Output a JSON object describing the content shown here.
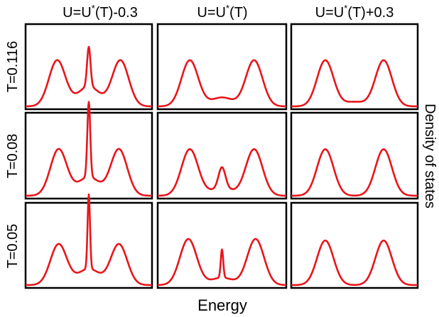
{
  "columns": [
    {
      "base": "U=U",
      "sup": "*",
      "rest": "(T)-0.3"
    },
    {
      "base": "U=U",
      "sup": "*",
      "rest": "(T)"
    },
    {
      "base": "U=U",
      "sup": "*",
      "rest": "(T)+0.3"
    }
  ],
  "rows": [
    "T=0.116",
    "T=0.08",
    "T=0.05"
  ],
  "xlabel": "Energy",
  "ylabel": "Density of states",
  "curve_color": "#e8151b",
  "chart_data": {
    "type": "line",
    "description_of_grid": "3x3 small multiples; rows = temperature T, columns = interaction U relative to U*(T)",
    "xlabel": "Energy",
    "ylabel": "Density of states",
    "x_ticks_shown": false,
    "y_ticks_shown": false,
    "panels": [
      {
        "row": "T=0.116",
        "col": "U=U*(T)-0.3",
        "hubbard_peaks_x": [
          -0.65,
          0.65
        ],
        "hubbard_peak_height": 0.62,
        "central_peak_height": 0.53,
        "central_peak_width": 0.035,
        "gap_depth": 0.27
      },
      {
        "row": "T=0.116",
        "col": "U=U*(T)",
        "hubbard_peaks_x": [
          -0.65,
          0.65
        ],
        "hubbard_peak_height": 0.62,
        "central_peak_height": 0.0,
        "central_peak_width": 0.0,
        "gap_depth": 0.12
      },
      {
        "row": "T=0.116",
        "col": "U=U*(T)+0.3",
        "hubbard_peaks_x": [
          -0.6,
          0.6
        ],
        "hubbard_peak_height": 0.62,
        "central_peak_height": 0.0,
        "central_peak_width": 0.0,
        "gap_depth": 0.06
      },
      {
        "row": "T=0.08",
        "col": "U=U*(T)-0.3",
        "hubbard_peaks_x": [
          -0.62,
          0.62
        ],
        "hubbard_peak_height": 0.62,
        "central_peak_height": 1.0,
        "central_peak_width": 0.03,
        "gap_depth": 0.25
      },
      {
        "row": "T=0.08",
        "col": "U=U*(T)",
        "hubbard_peaks_x": [
          -0.65,
          0.65
        ],
        "hubbard_peak_height": 0.62,
        "central_peak_height": 0.28,
        "central_peak_width": 0.07,
        "gap_depth": 0.1
      },
      {
        "row": "T=0.08",
        "col": "U=U*(T)+0.3",
        "hubbard_peaks_x": [
          -0.6,
          0.6
        ],
        "hubbard_peak_height": 0.62,
        "central_peak_height": 0.0,
        "central_peak_width": 0.0,
        "gap_depth": 0.0
      },
      {
        "row": "T=0.05",
        "col": "U=U*(T)-0.3",
        "hubbard_peaks_x": [
          -0.62,
          0.62
        ],
        "hubbard_peak_height": 0.55,
        "central_peak_height": 1.0,
        "central_peak_width": 0.025,
        "gap_depth": 0.22
      },
      {
        "row": "T=0.05",
        "col": "U=U*(T)",
        "hubbard_peaks_x": [
          -0.68,
          0.68
        ],
        "hubbard_peak_height": 0.62,
        "central_peak_height": 0.38,
        "central_peak_width": 0.025,
        "gap_depth": 0.1
      },
      {
        "row": "T=0.05",
        "col": "U=U*(T)+0.3",
        "hubbard_peaks_x": [
          -0.6,
          0.6
        ],
        "hubbard_peak_height": 0.6,
        "central_peak_height": 0.0,
        "central_peak_width": 0.0,
        "gap_depth": 0.0
      }
    ]
  }
}
